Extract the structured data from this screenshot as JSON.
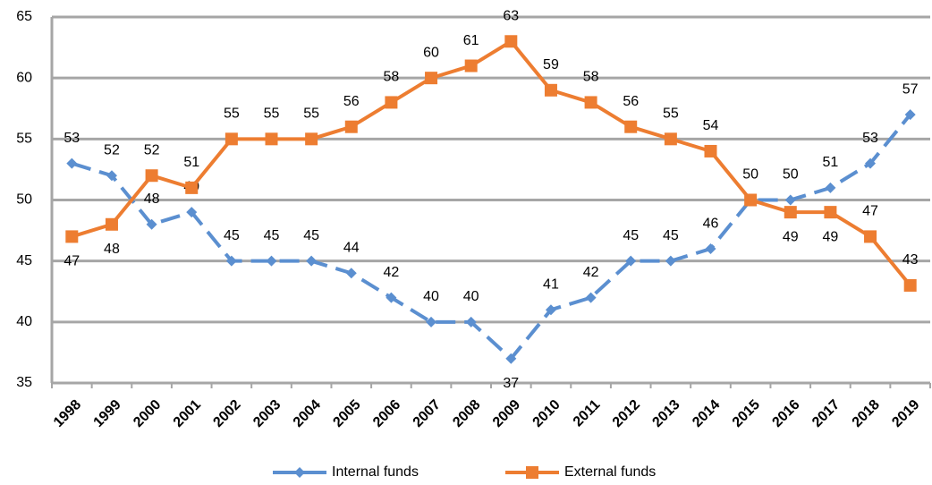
{
  "chart_data": {
    "type": "line",
    "categories": [
      "1998",
      "1999",
      "2000",
      "2001",
      "2002",
      "2003",
      "2004",
      "2005",
      "2006",
      "2007",
      "2008",
      "2009",
      "2010",
      "2011",
      "2012",
      "2013",
      "2014",
      "2015",
      "2016",
      "2017",
      "2018",
      "2019"
    ],
    "series": [
      {
        "name": "Internal funds",
        "color": "#5b8fd0",
        "values": [
          53,
          52,
          48,
          49,
          45,
          45,
          45,
          44,
          42,
          40,
          40,
          37,
          41,
          42,
          45,
          45,
          46,
          50,
          50,
          51,
          53,
          57
        ]
      },
      {
        "name": "External funds",
        "color": "#ed7d31",
        "values": [
          47,
          48,
          52,
          51,
          55,
          55,
          55,
          56,
          58,
          60,
          61,
          63,
          59,
          58,
          56,
          55,
          54,
          50,
          49,
          49,
          47,
          43
        ]
      }
    ],
    "ylim": [
      35,
      65
    ],
    "yticks": [
      35,
      40,
      45,
      50,
      55,
      60,
      65
    ],
    "grid": true,
    "legend": "bottom"
  }
}
